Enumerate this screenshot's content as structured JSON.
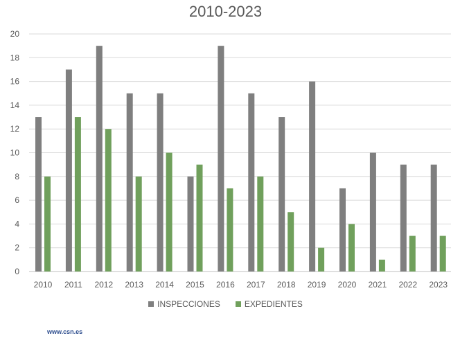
{
  "chart_data": {
    "type": "bar",
    "title": "2010-2023",
    "categories": [
      "2010",
      "2011",
      "2012",
      "2013",
      "2014",
      "2015",
      "2016",
      "2017",
      "2018",
      "2019",
      "2020",
      "2021",
      "2022",
      "2023"
    ],
    "series": [
      {
        "name": "INSPECCIONES",
        "color": "#7f7f7f",
        "values": [
          13,
          17,
          19,
          15,
          15,
          8,
          19,
          15,
          13,
          16,
          7,
          10,
          9,
          9
        ]
      },
      {
        "name": "EXPEDIENTES",
        "color": "#70a05c",
        "values": [
          8,
          13,
          12,
          8,
          10,
          9,
          7,
          8,
          5,
          2,
          4,
          1,
          3,
          3
        ]
      }
    ],
    "ylim": [
      0,
      20
    ],
    "yticks": [
      0,
      2,
      4,
      6,
      8,
      10,
      12,
      14,
      16,
      18,
      20
    ],
    "grid": true,
    "legend": "bottom"
  },
  "footer": {
    "source": "www.csn.es"
  }
}
